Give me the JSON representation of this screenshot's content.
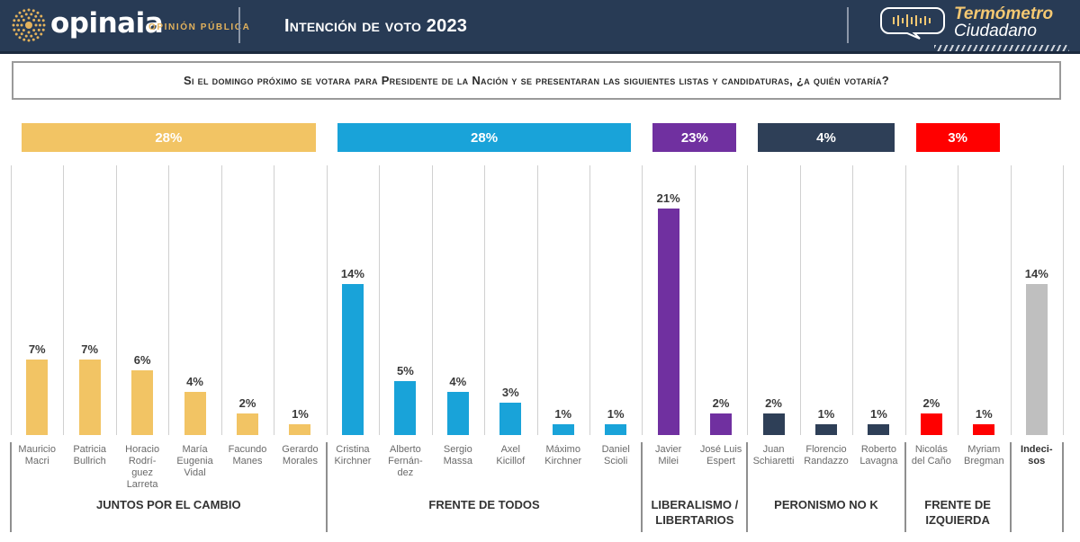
{
  "header": {
    "brand": "opinaia",
    "brand_sub": "OPINIÓN PÚBLICA",
    "title": "Intención de voto 2023",
    "badge_line1": "Termómetro",
    "badge_line2": "Ciudadano",
    "colors": {
      "background": "#283b55",
      "accent": "#e3b25c"
    }
  },
  "question": "Si el domingo próximo se votara para Presidente de la Nación y se presentaran las siguientes listas y candidaturas, ¿a quién votaría?",
  "chart_data": {
    "type": "bar",
    "title": "Intención de voto 2023",
    "subtitle": "Si el domingo próximo se votara para Presidente de la Nación y se presentaran las siguientes listas y candidaturas, ¿a quién votaría?",
    "xlabel": "",
    "ylabel": "",
    "unit": "%",
    "ylim": [
      0,
      21
    ],
    "grid": true,
    "legend": "none",
    "categories": [
      "Mauricio Macri",
      "Patricia Bullrich",
      "Horacio Rodríguez Larreta",
      "María Eugenia Vidal",
      "Facundo Manes",
      "Gerardo Morales",
      "Cristina Kirchner",
      "Alberto Fernández",
      "Sergio Massa",
      "Axel Kicillof",
      "Máximo Kirchner",
      "Daniel Scioli",
      "Javier Milei",
      "José Luis Espert",
      "Juan Schiaretti",
      "Florencio Randazzo",
      "Roberto Lavagna",
      "Nicolás del Caño",
      "Myriam Bregman",
      "Indecisos"
    ],
    "values": [
      7,
      7,
      6,
      4,
      2,
      1,
      14,
      5,
      4,
      3,
      1,
      1,
      21,
      2,
      2,
      1,
      1,
      2,
      1,
      14
    ],
    "groups": [
      {
        "name": "JUNTOS POR EL CAMBIO",
        "name_lines": [
          "JUNTOS POR EL CAMBIO"
        ],
        "total": 28,
        "total_label": "28%",
        "color": "#f2c464",
        "candidates": [
          {
            "name": "Mauricio Macri",
            "label_lines": [
              "Mauricio",
              "Macri"
            ],
            "value": 7,
            "value_label": "7%"
          },
          {
            "name": "Patricia Bullrich",
            "label_lines": [
              "Patricia",
              "Bullrich"
            ],
            "value": 7,
            "value_label": "7%"
          },
          {
            "name": "Horacio Rodríguez Larreta",
            "label_lines": [
              "Horacio",
              "Rodrí-",
              "guez",
              "Larreta"
            ],
            "value": 6,
            "value_label": "6%"
          },
          {
            "name": "María Eugenia Vidal",
            "label_lines": [
              "María",
              "Eugenia",
              "Vidal"
            ],
            "value": 4,
            "value_label": "4%"
          },
          {
            "name": "Facundo Manes",
            "label_lines": [
              "Facundo",
              "Manes"
            ],
            "value": 2,
            "value_label": "2%"
          },
          {
            "name": "Gerardo Morales",
            "label_lines": [
              "Gerardo",
              "Morales"
            ],
            "value": 1,
            "value_label": "1%"
          }
        ]
      },
      {
        "name": "FRENTE DE TODOS",
        "name_lines": [
          "FRENTE DE TODOS"
        ],
        "total": 28,
        "total_label": "28%",
        "color": "#19a3d9",
        "candidates": [
          {
            "name": "Cristina Kirchner",
            "label_lines": [
              "Cristina",
              "Kirchner"
            ],
            "value": 14,
            "value_label": "14%"
          },
          {
            "name": "Alberto Fernández",
            "label_lines": [
              "Alberto",
              "Fernán-",
              "dez"
            ],
            "value": 5,
            "value_label": "5%"
          },
          {
            "name": "Sergio Massa",
            "label_lines": [
              "Sergio",
              "Massa"
            ],
            "value": 4,
            "value_label": "4%"
          },
          {
            "name": "Axel Kicillof",
            "label_lines": [
              "Axel",
              "Kicillof"
            ],
            "value": 3,
            "value_label": "3%"
          },
          {
            "name": "Máximo Kirchner",
            "label_lines": [
              "Máximo",
              "Kirchner"
            ],
            "value": 1,
            "value_label": "1%"
          },
          {
            "name": "Daniel Scioli",
            "label_lines": [
              "Daniel",
              "Scioli"
            ],
            "value": 1,
            "value_label": "1%"
          }
        ]
      },
      {
        "name": "LIBERALISMO / LIBERTARIOS",
        "name_lines": [
          "LIBERALISMO /",
          "LIBERTARIOS"
        ],
        "total": 23,
        "total_label": "23%",
        "color": "#7030a0",
        "candidates": [
          {
            "name": "Javier Milei",
            "label_lines": [
              "Javier",
              "Milei"
            ],
            "value": 21,
            "value_label": "21%"
          },
          {
            "name": "José Luis Espert",
            "label_lines": [
              "José Luis",
              "Espert"
            ],
            "value": 2,
            "value_label": "2%"
          }
        ]
      },
      {
        "name": "PERONISMO NO K",
        "name_lines": [
          "PERONISMO NO K"
        ],
        "total": 4,
        "total_label": "4%",
        "color": "#2e3f57",
        "candidates": [
          {
            "name": "Juan Schiaretti",
            "label_lines": [
              "Juan",
              "Schiaretti"
            ],
            "value": 2,
            "value_label": "2%"
          },
          {
            "name": "Florencio Randazzo",
            "label_lines": [
              "Florencio",
              "Randazzo"
            ],
            "value": 1,
            "value_label": "1%"
          },
          {
            "name": "Roberto Lavagna",
            "label_lines": [
              "Roberto",
              "Lavagna"
            ],
            "value": 1,
            "value_label": "1%"
          }
        ]
      },
      {
        "name": "FRENTE DE IZQUIERDA",
        "name_lines": [
          "FRENTE DE",
          "IZQUIERDA"
        ],
        "total": 3,
        "total_label": "3%",
        "color": "#ff0000",
        "candidates": [
          {
            "name": "Nicolás del Caño",
            "label_lines": [
              "Nicolás",
              "del Caño"
            ],
            "value": 2,
            "value_label": "2%"
          },
          {
            "name": "Myriam Bregman",
            "label_lines": [
              "Myriam",
              "Bregman"
            ],
            "value": 1,
            "value_label": "1%"
          }
        ]
      },
      {
        "name": "",
        "name_lines": [],
        "total": null,
        "total_label": "",
        "color": "#bfbfbf",
        "candidates": [
          {
            "name": "Indecisos",
            "label_lines": [
              "Indeci-",
              "sos"
            ],
            "value": 14,
            "value_label": "14%",
            "bold": true
          }
        ]
      }
    ]
  }
}
